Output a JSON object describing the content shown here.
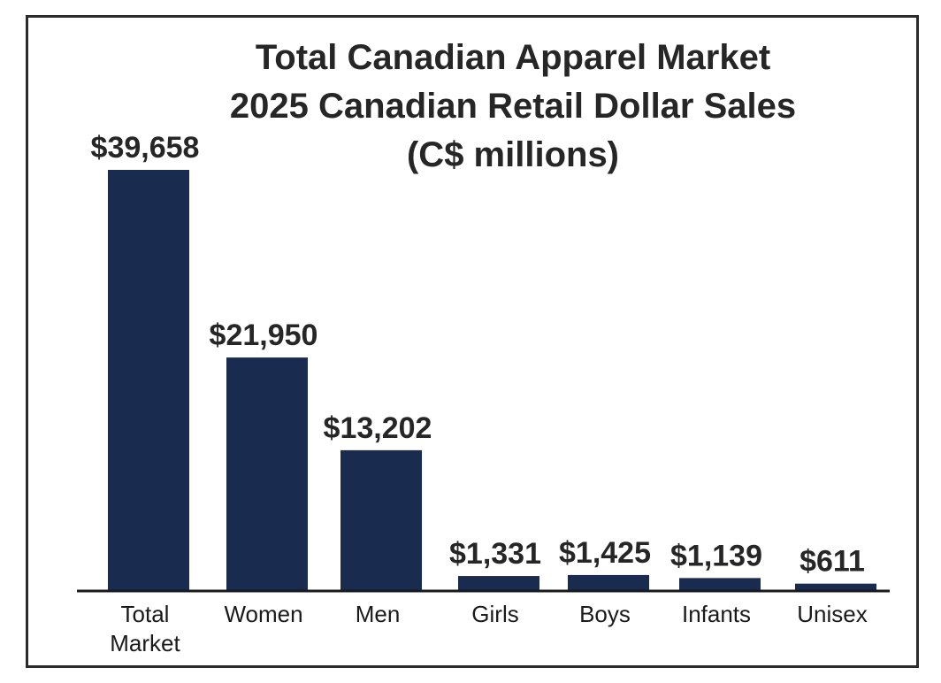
{
  "chart_data": {
    "type": "bar",
    "title": [
      "Total Canadian Apparel Market",
      "2025 Canadian Retail Dollar Sales",
      "(C$ millions)"
    ],
    "categories": [
      [
        "Total",
        "Market"
      ],
      [
        "Women"
      ],
      [
        "Men"
      ],
      [
        "Girls"
      ],
      [
        "Boys"
      ],
      [
        "Infants"
      ],
      [
        "Unisex"
      ]
    ],
    "values": [
      39658,
      21950,
      13202,
      1331,
      1425,
      1139,
      611
    ],
    "value_labels": [
      "$39,658",
      "$21,950",
      "$13,202",
      "$1,331",
      "$1,425",
      "$1,139",
      "$611"
    ],
    "bar_color": "#1a2b50",
    "ylim": [
      0,
      39658
    ],
    "grid": false,
    "legend": "none"
  }
}
